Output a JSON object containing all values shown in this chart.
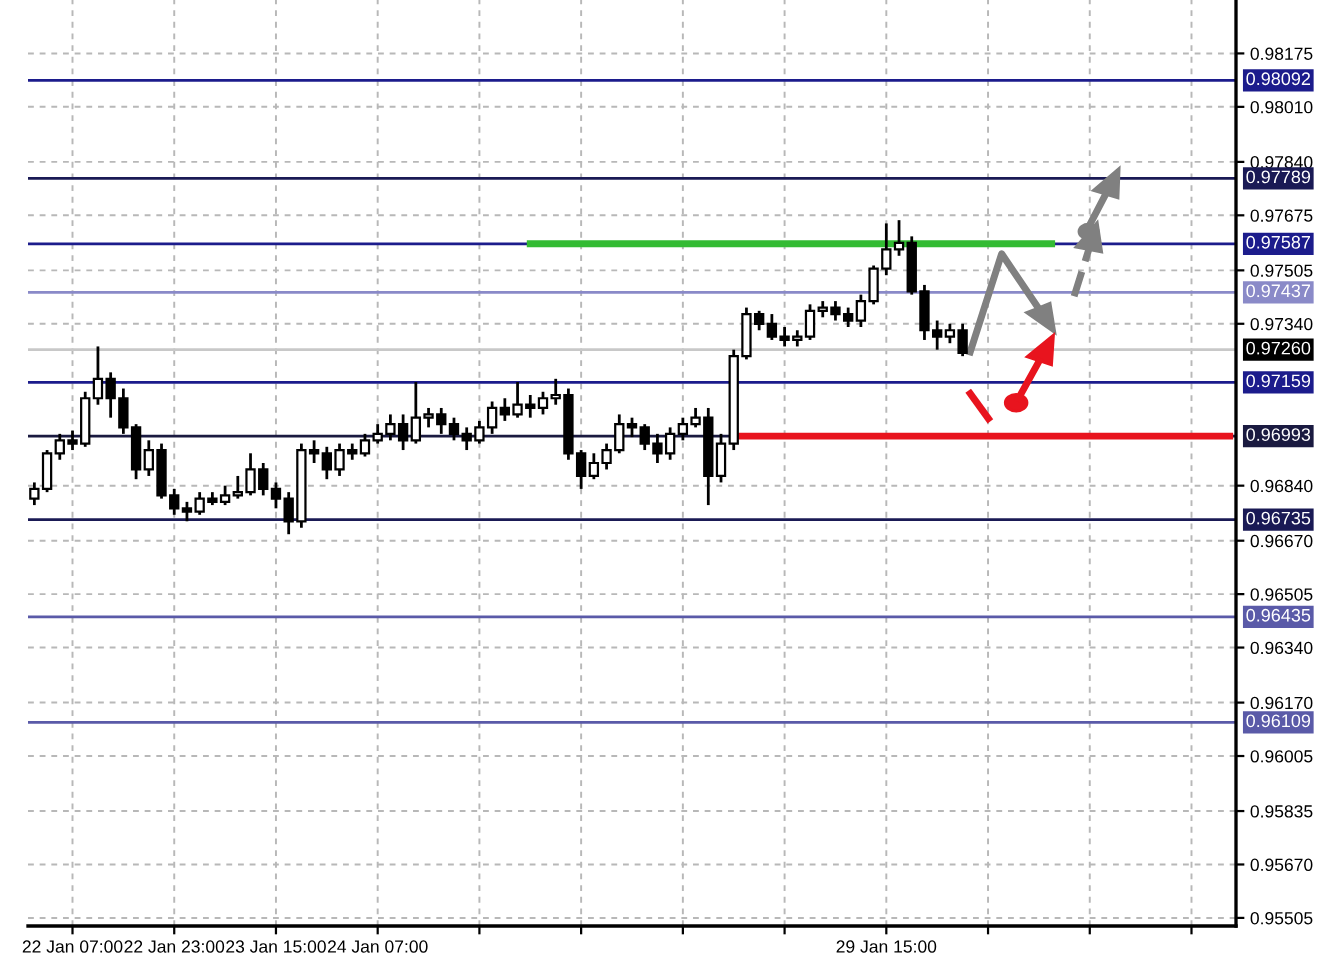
{
  "chart_data": {
    "type": "candlestick",
    "categories": [
      null,
      null,
      null,
      "22 Jan 07:00",
      null,
      null,
      null,
      null,
      null,
      null,
      null,
      "22 Jan 23:00",
      null,
      null,
      null,
      null,
      null,
      null,
      null,
      "23 Jan 15:00",
      null,
      null,
      null,
      null,
      null,
      null,
      null,
      "24 Jan 07:00",
      null,
      null,
      null,
      null,
      null,
      null,
      null,
      null,
      null,
      null,
      null,
      null,
      null,
      null,
      null,
      null,
      null,
      null,
      null,
      null,
      null,
      null,
      null,
      null,
      null,
      null,
      null,
      null,
      null,
      null,
      null,
      null,
      null,
      null,
      null,
      null,
      null,
      null,
      null,
      "29 Jan 15:00",
      null,
      null,
      null,
      null,
      null,
      null,
      null,
      null,
      null,
      null,
      null,
      null,
      null,
      null,
      null,
      null,
      null,
      null,
      null,
      null,
      null,
      null,
      null,
      null,
      null,
      null,
      null
    ],
    "ohlc": [
      [
        0.968,
        0.9685,
        0.9678,
        0.9683
      ],
      [
        0.9683,
        0.9695,
        0.9682,
        0.9694
      ],
      [
        0.9694,
        0.97,
        0.9692,
        0.9698
      ],
      [
        0.9698,
        0.9701,
        0.9695,
        0.9697
      ],
      [
        0.9697,
        0.9713,
        0.9696,
        0.9711
      ],
      [
        0.9711,
        0.9727,
        0.9709,
        0.9717
      ],
      [
        0.9717,
        0.9719,
        0.9705,
        0.9711
      ],
      [
        0.9711,
        0.9714,
        0.97,
        0.9702
      ],
      [
        0.9702,
        0.9703,
        0.9686,
        0.9689
      ],
      [
        0.9689,
        0.9698,
        0.9687,
        0.9695
      ],
      [
        0.9695,
        0.9697,
        0.968,
        0.9681
      ],
      [
        0.9681,
        0.9683,
        0.9675,
        0.9677
      ],
      [
        0.9677,
        0.9679,
        0.9673,
        0.9676
      ],
      [
        0.9676,
        0.9682,
        0.9675,
        0.968
      ],
      [
        0.968,
        0.9682,
        0.9678,
        0.9679
      ],
      [
        0.9679,
        0.9684,
        0.9678,
        0.9681
      ],
      [
        0.9681,
        0.9687,
        0.968,
        0.9682
      ],
      [
        0.9682,
        0.9694,
        0.9681,
        0.9689
      ],
      [
        0.9689,
        0.9691,
        0.9681,
        0.9683
      ],
      [
        0.9683,
        0.9685,
        0.9677,
        0.968
      ],
      [
        0.968,
        0.9682,
        0.9669,
        0.9673
      ],
      [
        0.9673,
        0.9697,
        0.9671,
        0.9695
      ],
      [
        0.9695,
        0.9698,
        0.9691,
        0.9694
      ],
      [
        0.9694,
        0.9696,
        0.9686,
        0.9689
      ],
      [
        0.9689,
        0.9697,
        0.9687,
        0.9695
      ],
      [
        0.9695,
        0.9697,
        0.9692,
        0.9694
      ],
      [
        0.9694,
        0.97,
        0.9693,
        0.9698
      ],
      [
        0.9698,
        0.9703,
        0.9697,
        0.97
      ],
      [
        0.97,
        0.9706,
        0.9698,
        0.9703
      ],
      [
        0.9703,
        0.9706,
        0.9695,
        0.9698
      ],
      [
        0.9698,
        0.9716,
        0.9697,
        0.9705
      ],
      [
        0.9705,
        0.9708,
        0.9702,
        0.9706
      ],
      [
        0.9706,
        0.9708,
        0.97,
        0.9703
      ],
      [
        0.9703,
        0.9705,
        0.9698,
        0.97
      ],
      [
        0.97,
        0.9702,
        0.9695,
        0.9698
      ],
      [
        0.9698,
        0.9704,
        0.9697,
        0.9702
      ],
      [
        0.9702,
        0.971,
        0.97,
        0.9708
      ],
      [
        0.9708,
        0.9711,
        0.9704,
        0.9706
      ],
      [
        0.9706,
        0.9716,
        0.9705,
        0.9709
      ],
      [
        0.9709,
        0.9712,
        0.9705,
        0.9708
      ],
      [
        0.9708,
        0.9713,
        0.9706,
        0.9711
      ],
      [
        0.9711,
        0.9717,
        0.9709,
        0.9712
      ],
      [
        0.9712,
        0.9714,
        0.9692,
        0.9694
      ],
      [
        0.9694,
        0.9695,
        0.9683,
        0.9687
      ],
      [
        0.9687,
        0.9694,
        0.9686,
        0.9691
      ],
      [
        0.9691,
        0.9697,
        0.9689,
        0.9695
      ],
      [
        0.9695,
        0.9706,
        0.9694,
        0.9703
      ],
      [
        0.9703,
        0.9705,
        0.9699,
        0.9702
      ],
      [
        0.9702,
        0.9703,
        0.9695,
        0.9697
      ],
      [
        0.9697,
        0.97,
        0.9691,
        0.9694
      ],
      [
        0.9694,
        0.9702,
        0.9692,
        0.97
      ],
      [
        0.97,
        0.9705,
        0.9698,
        0.9703
      ],
      [
        0.9703,
        0.9708,
        0.9702,
        0.9705
      ],
      [
        0.9705,
        0.9708,
        0.9678,
        0.9687
      ],
      [
        0.9687,
        0.97,
        0.9685,
        0.9697
      ],
      [
        0.9697,
        0.9726,
        0.9695,
        0.9724
      ],
      [
        0.9724,
        0.9739,
        0.9723,
        0.9737
      ],
      [
        0.9737,
        0.9738,
        0.9732,
        0.9734
      ],
      [
        0.9734,
        0.9737,
        0.9729,
        0.973
      ],
      [
        0.973,
        0.9733,
        0.9727,
        0.9729
      ],
      [
        0.9729,
        0.9732,
        0.9727,
        0.973
      ],
      [
        0.973,
        0.974,
        0.9729,
        0.9738
      ],
      [
        0.9738,
        0.9741,
        0.9736,
        0.9739
      ],
      [
        0.9739,
        0.9741,
        0.9735,
        0.9737
      ],
      [
        0.9737,
        0.9739,
        0.9733,
        0.9735
      ],
      [
        0.9735,
        0.9743,
        0.9733,
        0.9741
      ],
      [
        0.9741,
        0.9752,
        0.974,
        0.9751
      ],
      [
        0.9751,
        0.9765,
        0.9749,
        0.9757
      ],
      [
        0.9757,
        0.9766,
        0.9755,
        0.9759
      ],
      [
        0.9759,
        0.9761,
        0.9743,
        0.9744
      ],
      [
        0.9744,
        0.9746,
        0.9729,
        0.9732
      ],
      [
        0.9732,
        0.9735,
        0.9726,
        0.973
      ],
      [
        0.973,
        0.9734,
        0.9728,
        0.9732
      ],
      [
        0.9732,
        0.9734,
        0.9724,
        0.9725
      ],
      null,
      null,
      null,
      null,
      null,
      null,
      null,
      null,
      null,
      null,
      null,
      null,
      null,
      null,
      null,
      null,
      null,
      null,
      null,
      null,
      null
    ],
    "series": [
      {
        "type": "line",
        "color": "#33bb33",
        "values": [
          null,
          null,
          null,
          null,
          null,
          null,
          null,
          null,
          null,
          null,
          null,
          null,
          null,
          null,
          null,
          null,
          null,
          null,
          null,
          null,
          null,
          null,
          null,
          null,
          null,
          null,
          null,
          null,
          null,
          null,
          null,
          null,
          null,
          null,
          null,
          null,
          null,
          null,
          null,
          0.97587,
          0.97587,
          0.97587,
          0.97587,
          0.97587,
          0.97587,
          0.97587,
          0.97587,
          0.97587,
          0.97587,
          0.97587,
          0.97587,
          0.97587,
          0.97587,
          0.97587,
          0.97587,
          0.97587,
          0.97587,
          0.97587,
          0.97587,
          0.97587,
          0.97587,
          0.97587,
          0.97587,
          0.97587,
          0.97587,
          0.97587,
          0.97587,
          0.97587,
          0.97587,
          0.97587,
          0.97587,
          0.97587,
          0.97587,
          0.97587,
          0.97587,
          0.97587,
          0.97587,
          0.97587,
          0.97587,
          0.97587,
          0.97587,
          null,
          null,
          null,
          null,
          null,
          null,
          null,
          null,
          null,
          null,
          null,
          null,
          null,
          null
        ]
      },
      {
        "type": "line",
        "color": "#e8141e",
        "values": [
          null,
          null,
          null,
          null,
          null,
          null,
          null,
          null,
          null,
          null,
          null,
          null,
          null,
          null,
          null,
          null,
          null,
          null,
          null,
          null,
          null,
          null,
          null,
          null,
          null,
          null,
          null,
          null,
          null,
          null,
          null,
          null,
          null,
          null,
          null,
          null,
          null,
          null,
          null,
          null,
          null,
          null,
          null,
          null,
          null,
          null,
          null,
          null,
          null,
          null,
          null,
          null,
          null,
          null,
          null,
          0.96993,
          0.96993,
          0.96993,
          0.96993,
          0.96993,
          0.96993,
          0.96993,
          0.96993,
          0.96993,
          0.96993,
          0.96993,
          0.96993,
          0.96993,
          0.96993,
          0.96993,
          0.96993,
          0.96993,
          0.96993,
          0.96993,
          0.96993,
          0.96993,
          0.96993,
          0.96993,
          0.96993,
          0.96993,
          0.96993,
          0.96993,
          0.96993,
          0.96993,
          0.96993,
          0.96993,
          0.96993,
          0.96993,
          0.96993,
          0.96993,
          0.96993,
          0.96993,
          0.96993,
          0.96993,
          0.96993
        ]
      }
    ],
    "ylim": [
      0.9548,
      0.9834
    ],
    "yticks": [
      {
        "value": 0.98175,
        "label": "0.98175"
      },
      {
        "value": 0.9801,
        "label": "0.98010"
      },
      {
        "value": 0.9784,
        "label": "0.97840"
      },
      {
        "value": 0.97675,
        "label": "0.97675"
      },
      {
        "value": 0.97505,
        "label": "0.97505"
      },
      {
        "value": 0.9734,
        "label": "0.97340"
      },
      {
        "value": 0.9684,
        "label": "0.96840"
      },
      {
        "value": 0.9667,
        "label": "0.96670"
      },
      {
        "value": 0.96505,
        "label": "0.96505"
      },
      {
        "value": 0.9634,
        "label": "0.96340"
      },
      {
        "value": 0.9617,
        "label": "0.96170"
      },
      {
        "value": 0.96005,
        "label": "0.96005"
      },
      {
        "value": 0.95835,
        "label": "0.95835"
      },
      {
        "value": 0.9567,
        "label": "0.95670"
      },
      {
        "value": 0.95505,
        "label": "0.95505"
      }
    ],
    "grid": true,
    "ref_lines": [
      {
        "axis": "y",
        "value": 0.98092,
        "label": "0.98092",
        "color": "#1c1c8c"
      },
      {
        "axis": "y",
        "value": 0.97789,
        "label": "0.97789",
        "color": "#1a1a55"
      },
      {
        "axis": "y",
        "value": 0.97587,
        "label": "0.97587",
        "color": "#1c1c8c"
      },
      {
        "axis": "y",
        "value": 0.97437,
        "label": "0.97437",
        "color": "#8a8ac8"
      },
      {
        "axis": "y",
        "value": 0.9726,
        "label": "0.97260",
        "color": "#c8c8c8"
      },
      {
        "axis": "y",
        "value": 0.97159,
        "label": "0.97159",
        "color": "#1c1c8c"
      },
      {
        "axis": "y",
        "value": 0.96993,
        "label": "0.96993",
        "color": "#1a1a40"
      },
      {
        "axis": "y",
        "value": 0.96735,
        "label": "0.96735",
        "color": "#1a1a55"
      },
      {
        "axis": "y",
        "value": 0.96435,
        "label": "0.96435",
        "color": "#5a5aa8"
      },
      {
        "axis": "y",
        "value": 0.96109,
        "label": "0.96109",
        "color": "#5a5aa8"
      }
    ]
  }
}
